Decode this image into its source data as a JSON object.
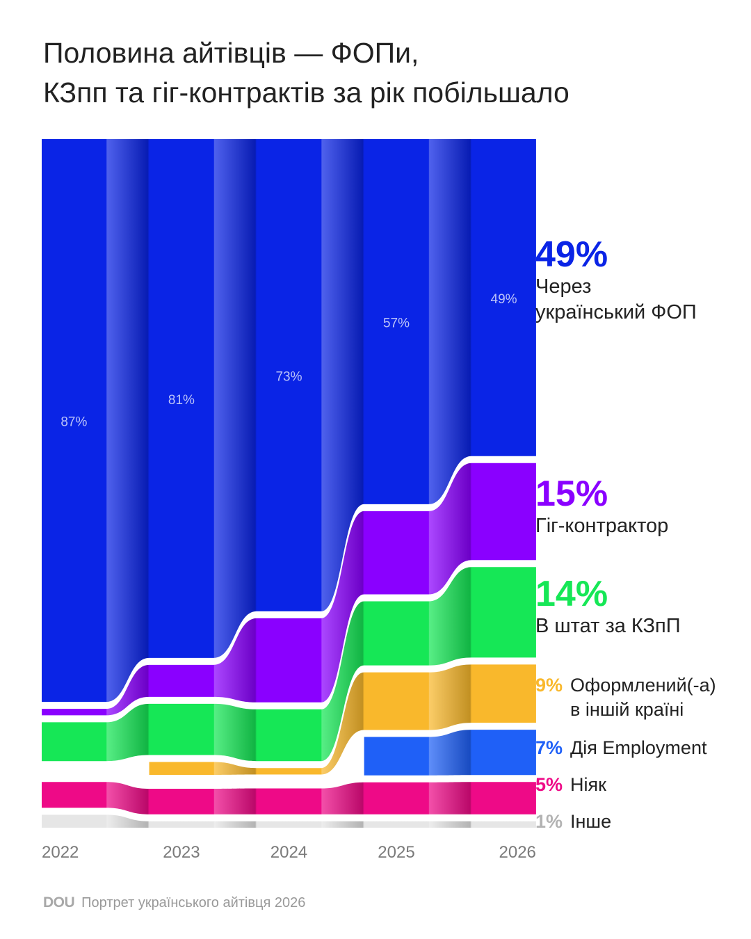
{
  "title": {
    "line1": "Половина айтівців — ФОПи,",
    "line2": "КЗпп та гіг-контрактів за рік побільшало"
  },
  "chart_data": {
    "type": "area",
    "x": [
      "2022",
      "2023",
      "2024",
      "2025",
      "2026"
    ],
    "series": [
      {
        "name": "Через український ФОП",
        "values": [
          87,
          81,
          73,
          57,
          49
        ],
        "color": "#0a24e6",
        "value_labels": [
          "87%",
          "81%",
          "73%",
          "57%",
          "49%"
        ]
      },
      {
        "name": "Гіг-контрактор",
        "values": [
          1,
          5,
          13,
          13,
          15
        ],
        "color": "#8a00ff"
      },
      {
        "name": "В штат за КЗпП",
        "values": [
          6,
          8,
          8,
          10,
          14
        ],
        "color": "#16e756"
      },
      {
        "name": "Оформлений(-а) в іншій країні",
        "values": [
          0,
          2,
          1,
          9,
          9
        ],
        "color": "#f9b82c"
      },
      {
        "name": "Дія Employment",
        "values": [
          0,
          0,
          0,
          6,
          7
        ],
        "color": "#1f60f7"
      },
      {
        "name": "Ніяк",
        "values": [
          4,
          4,
          4,
          5,
          5
        ],
        "color": "#ee0a87"
      },
      {
        "name": "Інше",
        "values": [
          2,
          1,
          1,
          1,
          1
        ],
        "color": "#e6e6e6"
      }
    ],
    "ylim": [
      0,
      100
    ],
    "legend": "right"
  },
  "legend": {
    "fop": {
      "pct": "49%",
      "line1": "Через",
      "line2": "український ФОП",
      "color": "#0a24e6"
    },
    "gig": {
      "pct": "15%",
      "label": "Гіг-контрактор",
      "color": "#8a00ff"
    },
    "kzpp": {
      "pct": "14%",
      "label": "В штат за КЗпП",
      "color": "#16e756"
    },
    "abroad": {
      "pct": "9%",
      "line1": "Оформлений(-а)",
      "line2": "в іншій країні",
      "color": "#f9b82c"
    },
    "diia": {
      "pct": "7%",
      "label": "Дія Employment",
      "color": "#1f60f7"
    },
    "none": {
      "pct": "5%",
      "label": "Ніяк",
      "color": "#ee0a87"
    },
    "other": {
      "pct": "1%",
      "label": "Інше",
      "color": "#b3b3b3"
    }
  },
  "footer": {
    "logo": "DOU",
    "source": "Портрет українського айтівця 2026"
  }
}
